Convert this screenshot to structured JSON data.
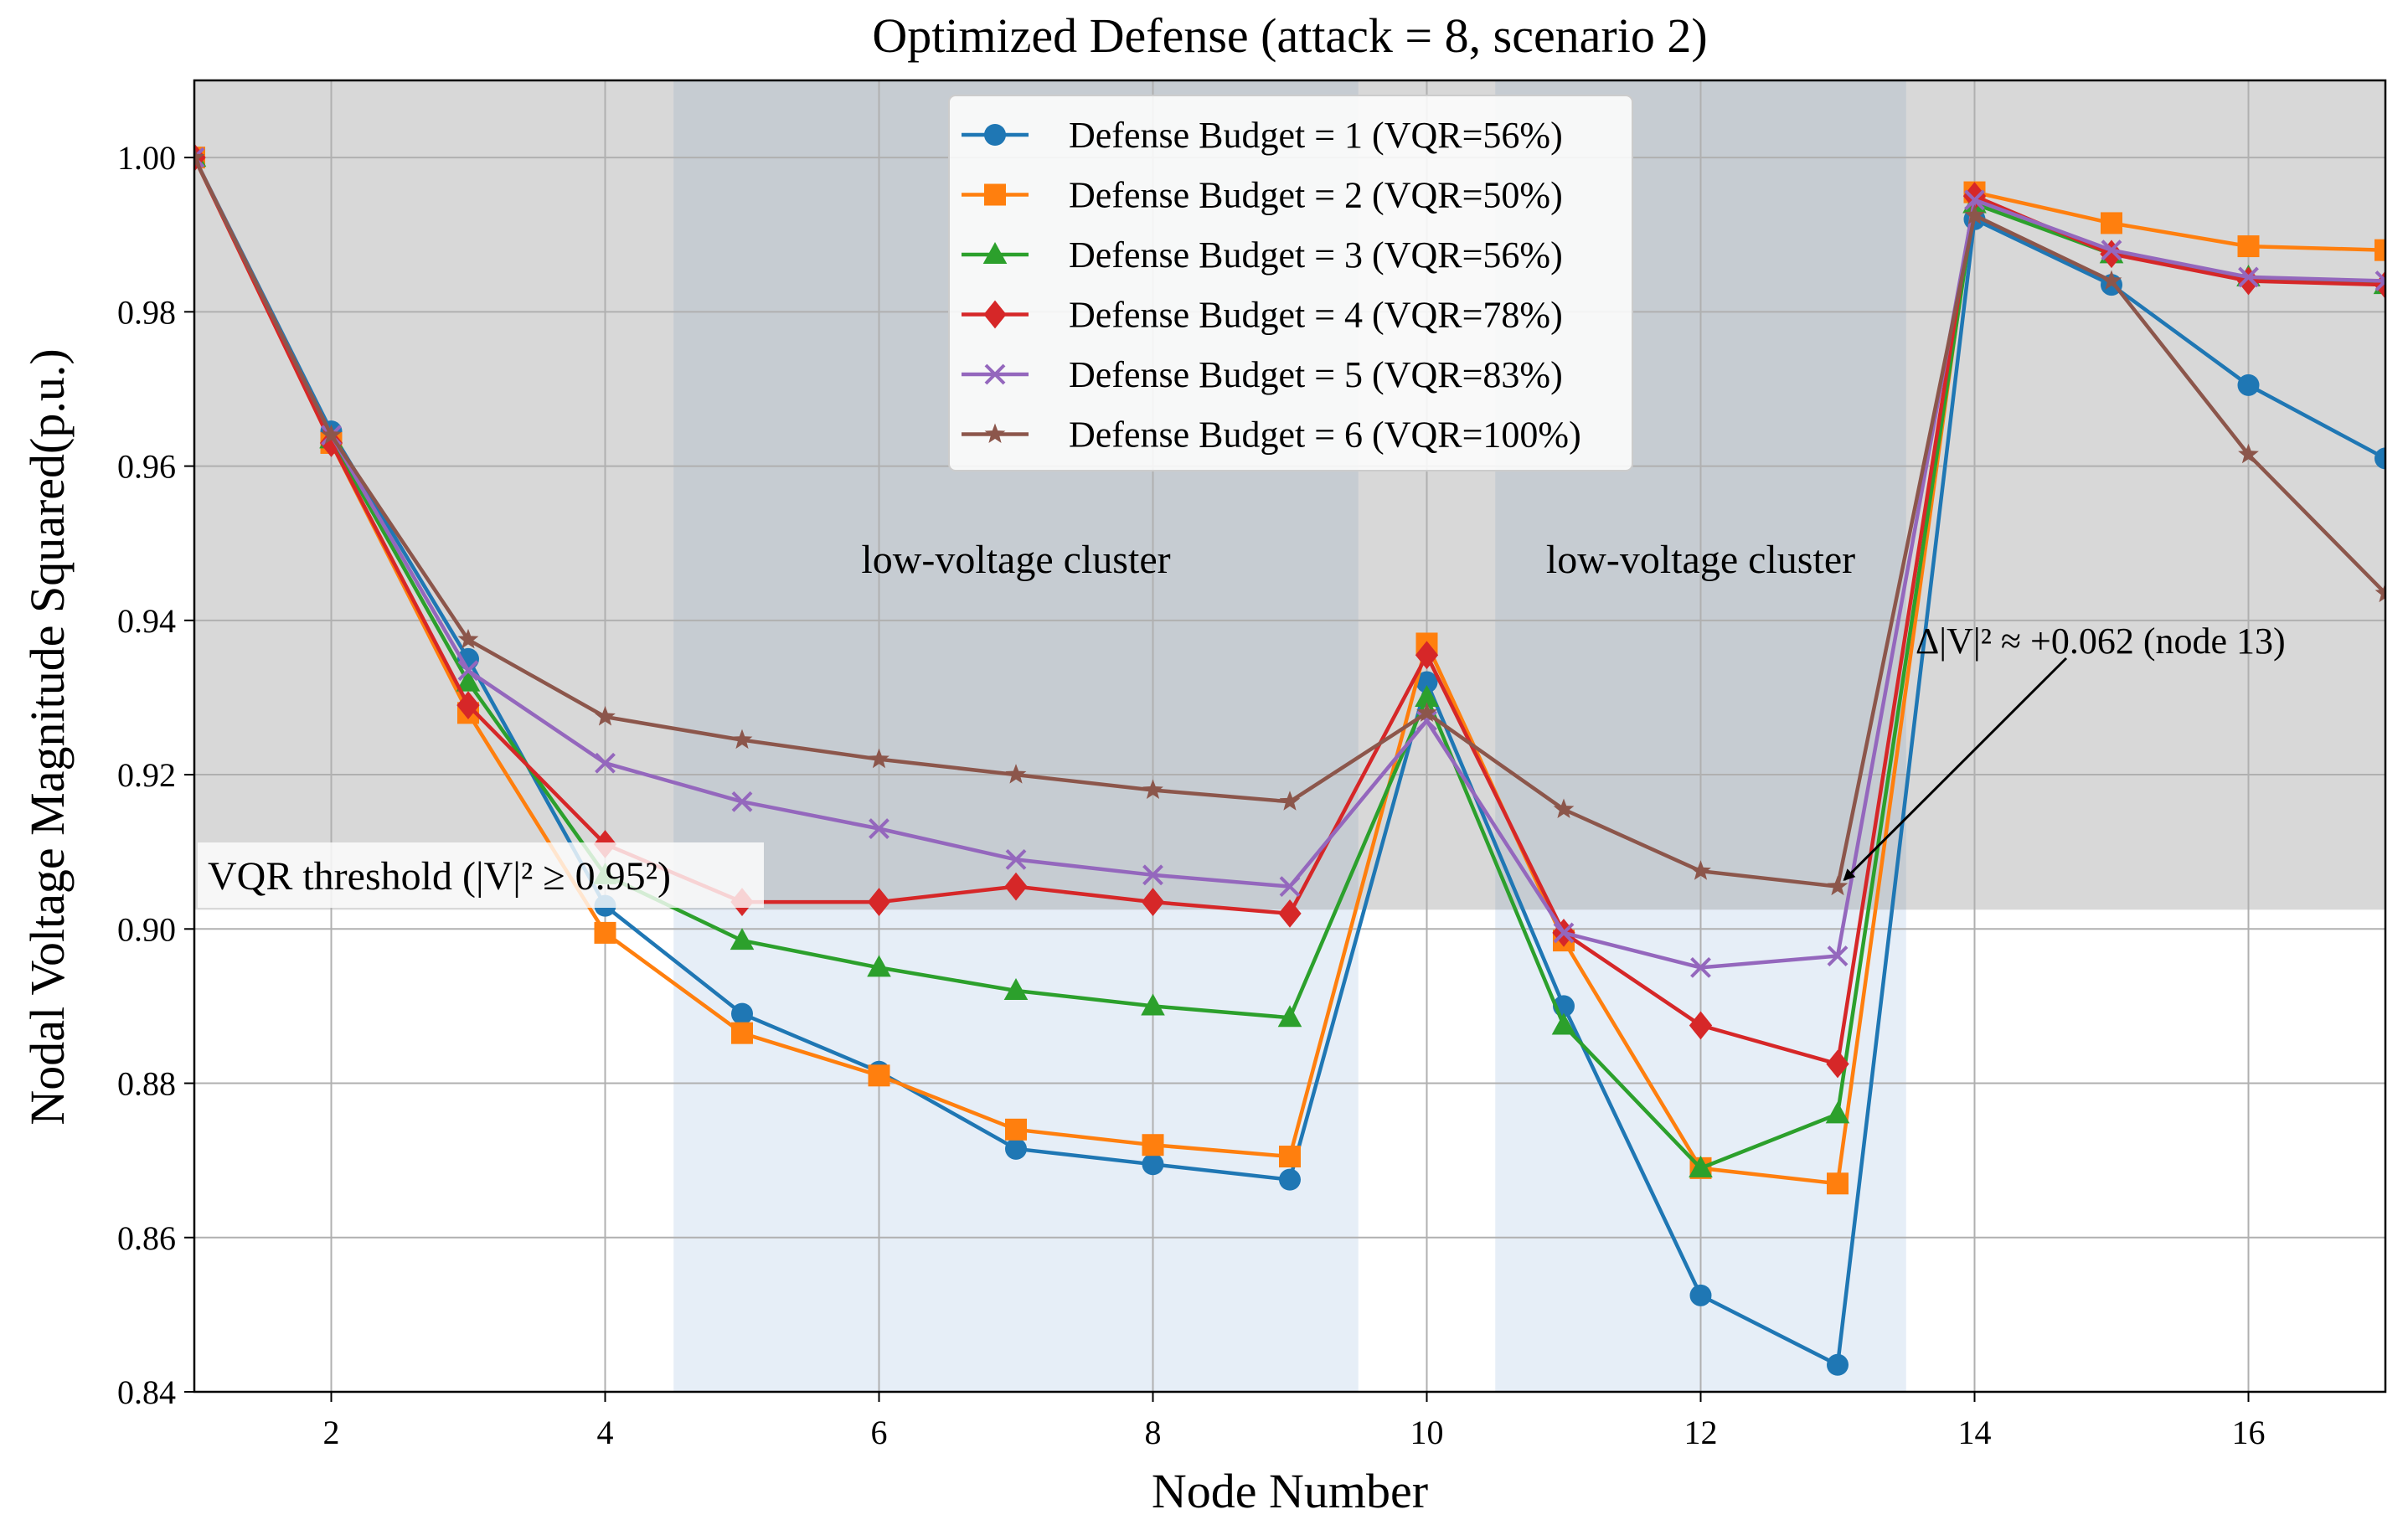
{
  "chart_data": {
    "type": "line",
    "title": "Optimized Defense (attack = 8, scenario 2)",
    "xlabel": "Node Number",
    "ylabel": "Nodal Voltage Magnitude Squared(p.u.)",
    "xlim": [
      1,
      17
    ],
    "ylim": [
      0.84,
      1.01
    ],
    "xticks": [
      2,
      4,
      6,
      8,
      10,
      12,
      14,
      16
    ],
    "yticks": [
      0.84,
      0.86,
      0.88,
      0.9,
      0.92,
      0.94,
      0.96,
      0.98,
      1.0
    ],
    "ytick_labels": [
      "0.84",
      "0.86",
      "0.88",
      "0.90",
      "0.92",
      "0.94",
      "0.96",
      "0.98",
      "1.00"
    ],
    "grid": true,
    "legend_position": "top-center",
    "x": [
      1,
      2,
      3,
      4,
      5,
      6,
      7,
      8,
      9,
      10,
      11,
      12,
      13,
      14,
      15,
      16,
      17
    ],
    "series": [
      {
        "name": "Defense Budget = 1 (VQR=56%)",
        "color": "#1f77b4",
        "marker": "circle",
        "values": [
          1.0,
          0.9645,
          0.935,
          0.903,
          0.889,
          0.8815,
          0.8715,
          0.8695,
          0.8675,
          0.932,
          0.89,
          0.8525,
          0.8435,
          0.992,
          0.9835,
          0.9705,
          0.961
        ]
      },
      {
        "name": "Defense Budget = 2 (VQR=50%)",
        "color": "#ff7f0e",
        "marker": "square",
        "values": [
          1.0,
          0.963,
          0.928,
          0.8995,
          0.8865,
          0.881,
          0.874,
          0.872,
          0.8705,
          0.937,
          0.8985,
          0.869,
          0.867,
          0.9955,
          0.9915,
          0.9885,
          0.988
        ]
      },
      {
        "name": "Defense Budget = 3 (VQR=56%)",
        "color": "#2ca02c",
        "marker": "triangle",
        "values": [
          1.0,
          0.9635,
          0.932,
          0.907,
          0.8985,
          0.895,
          0.892,
          0.89,
          0.8885,
          0.93,
          0.8875,
          0.869,
          0.876,
          0.994,
          0.9875,
          0.9845,
          0.9835
        ]
      },
      {
        "name": "Defense Budget = 4 (VQR=78%)",
        "color": "#d62728",
        "marker": "diamond",
        "values": [
          1.0,
          0.963,
          0.929,
          0.911,
          0.9035,
          0.9035,
          0.9055,
          0.9035,
          0.902,
          0.9355,
          0.8995,
          0.8875,
          0.8825,
          0.995,
          0.9875,
          0.984,
          0.9835
        ]
      },
      {
        "name": "Defense Budget = 5 (VQR=83%)",
        "color": "#9467bd",
        "marker": "x",
        "values": [
          1.0,
          0.964,
          0.9335,
          0.9215,
          0.9165,
          0.913,
          0.909,
          0.907,
          0.9055,
          0.927,
          0.8995,
          0.895,
          0.8965,
          0.9945,
          0.988,
          0.9845,
          0.984
        ]
      },
      {
        "name": "Defense Budget = 6 (VQR=100%)",
        "color": "#8c564b",
        "marker": "star",
        "values": [
          1.0,
          0.964,
          0.9375,
          0.9275,
          0.9245,
          0.922,
          0.92,
          0.918,
          0.9165,
          0.928,
          0.9155,
          0.9075,
          0.9055,
          0.9925,
          0.984,
          0.9615,
          0.9435
        ]
      }
    ],
    "shaded_regions": [
      {
        "x_start": 4.5,
        "x_end": 9.5,
        "label": "low-voltage cluster"
      },
      {
        "x_start": 10.5,
        "x_end": 13.5,
        "label": "low-voltage cluster"
      }
    ],
    "threshold": {
      "y": 0.9025,
      "label": "VQR threshold (|V|² ≥ 0.95²)"
    },
    "annotation": {
      "text": "Δ|V|² ≈ +0.062 (node 13)",
      "text_x": 14.25,
      "text_y": 0.937,
      "arrow_x": 13,
      "arrow_y": 0.9055
    }
  }
}
